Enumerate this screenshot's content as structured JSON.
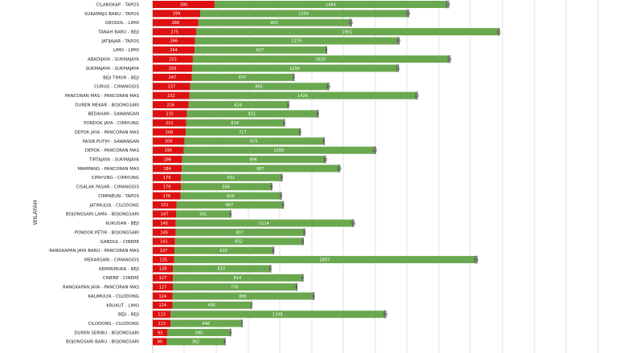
{
  "chart_data": {
    "type": "bar",
    "orientation": "horizontal",
    "stacked": true,
    "ylabel": "WILAYAH",
    "grid": true,
    "categories": [
      "CILANGKAP - TAPOS",
      "SUKAMAJU BARU - TAPOS",
      "GROGOL - LIMO",
      "TANAH BARU - BEJI",
      "JATIJAJAR - TAPOS",
      "LIMO - LIMO",
      "ABADIJAYA - SUKMAJAYA",
      "SUKMAJAYA - SUKMAJAYA",
      "BEJI TIMUR - BEJI",
      "CURUG - CIMANGGIS",
      "PANCORAN MAS - PANCORAN MAS",
      "DUREN MEKAR - BOJONGSARI",
      "BEDAHAN - SAWANGAN",
      "PONDOK JAYA - CIPAYUNG",
      "DEPOK JAYA - PANCORAN MAS",
      "PASIR PUTIH - SAWANGAN",
      "DEPOK - PANCORAN MAS",
      "TIRTAJAYA - SUKMAJAYA",
      "MAMPANG - PANCORAN MAS",
      "CIPAYUNG - CIPAYUNG",
      "CISALAK PASAR - CIMANGGIS",
      "CIMPAEUN - TAPOS",
      "JATIMULYA - CILODONG",
      "BOJONGSARI LAMA - BOJONGSARI",
      "KUKUSAN - BEJI",
      "PONDOK PETIR - BOJONGSARI",
      "GANDUL - CINERE",
      "RANGKAPAN JAYA BARU - PANCORAN MAS",
      "MEKARSARI - CIMANGGIS",
      "KEMIRIMUKA - BEJI",
      "CINERE - CINERE",
      "RANGKAPAN JAYA - PANCORAN MAS",
      "KALIMULYA - CILODONG",
      "KRUKUT - LIMO",
      "BEJI - BEJI",
      "CILODONG - CILODONG",
      "DUREN SERIBU - BOJONGSARI",
      "BOJONGSARI BARU - BOJONGSARI"
    ],
    "series": [
      {
        "color": "#dd1111",
        "values": [
          390,
          299,
          288,
          275,
          266,
          264,
          253,
          250,
          247,
          237,
          232,
          226,
          215,
          211,
          208,
          200,
          195,
          186,
          184,
          179,
          179,
          176,
          151,
          147,
          145,
          145,
          141,
          137,
          135,
          128,
          127,
          127,
          124,
          124,
          113,
          113,
          93,
          90
        ]
      },
      {
        "color": "#6aa84f",
        "values": [
          1464,
          1304,
          955,
          1901,
          1279,
          827,
          1610,
          1290,
          637,
          865,
          1426,
          624,
          821,
          614,
          717,
          875,
          1200,
          896,
          987,
          631,
          566,
          629,
          667,
          341,
          1114,
          807,
          802,
          620,
          1897,
          610,
          814,
          776,
          886,
          495,
          1348,
          446,
          395,
          362
        ]
      },
      {
        "color": "#8a8a8a",
        "text_color": "#333333",
        "values": [
          13,
          13,
          12,
          11,
          10,
          8,
          13,
          11,
          9,
          10,
          12,
          9,
          9,
          8,
          8,
          9,
          12,
          10,
          10,
          8,
          8,
          8,
          8,
          6,
          10,
          9,
          8,
          8,
          15,
          8,
          9,
          8,
          9,
          7,
          10,
          7,
          6,
          6
        ]
      }
    ]
  }
}
